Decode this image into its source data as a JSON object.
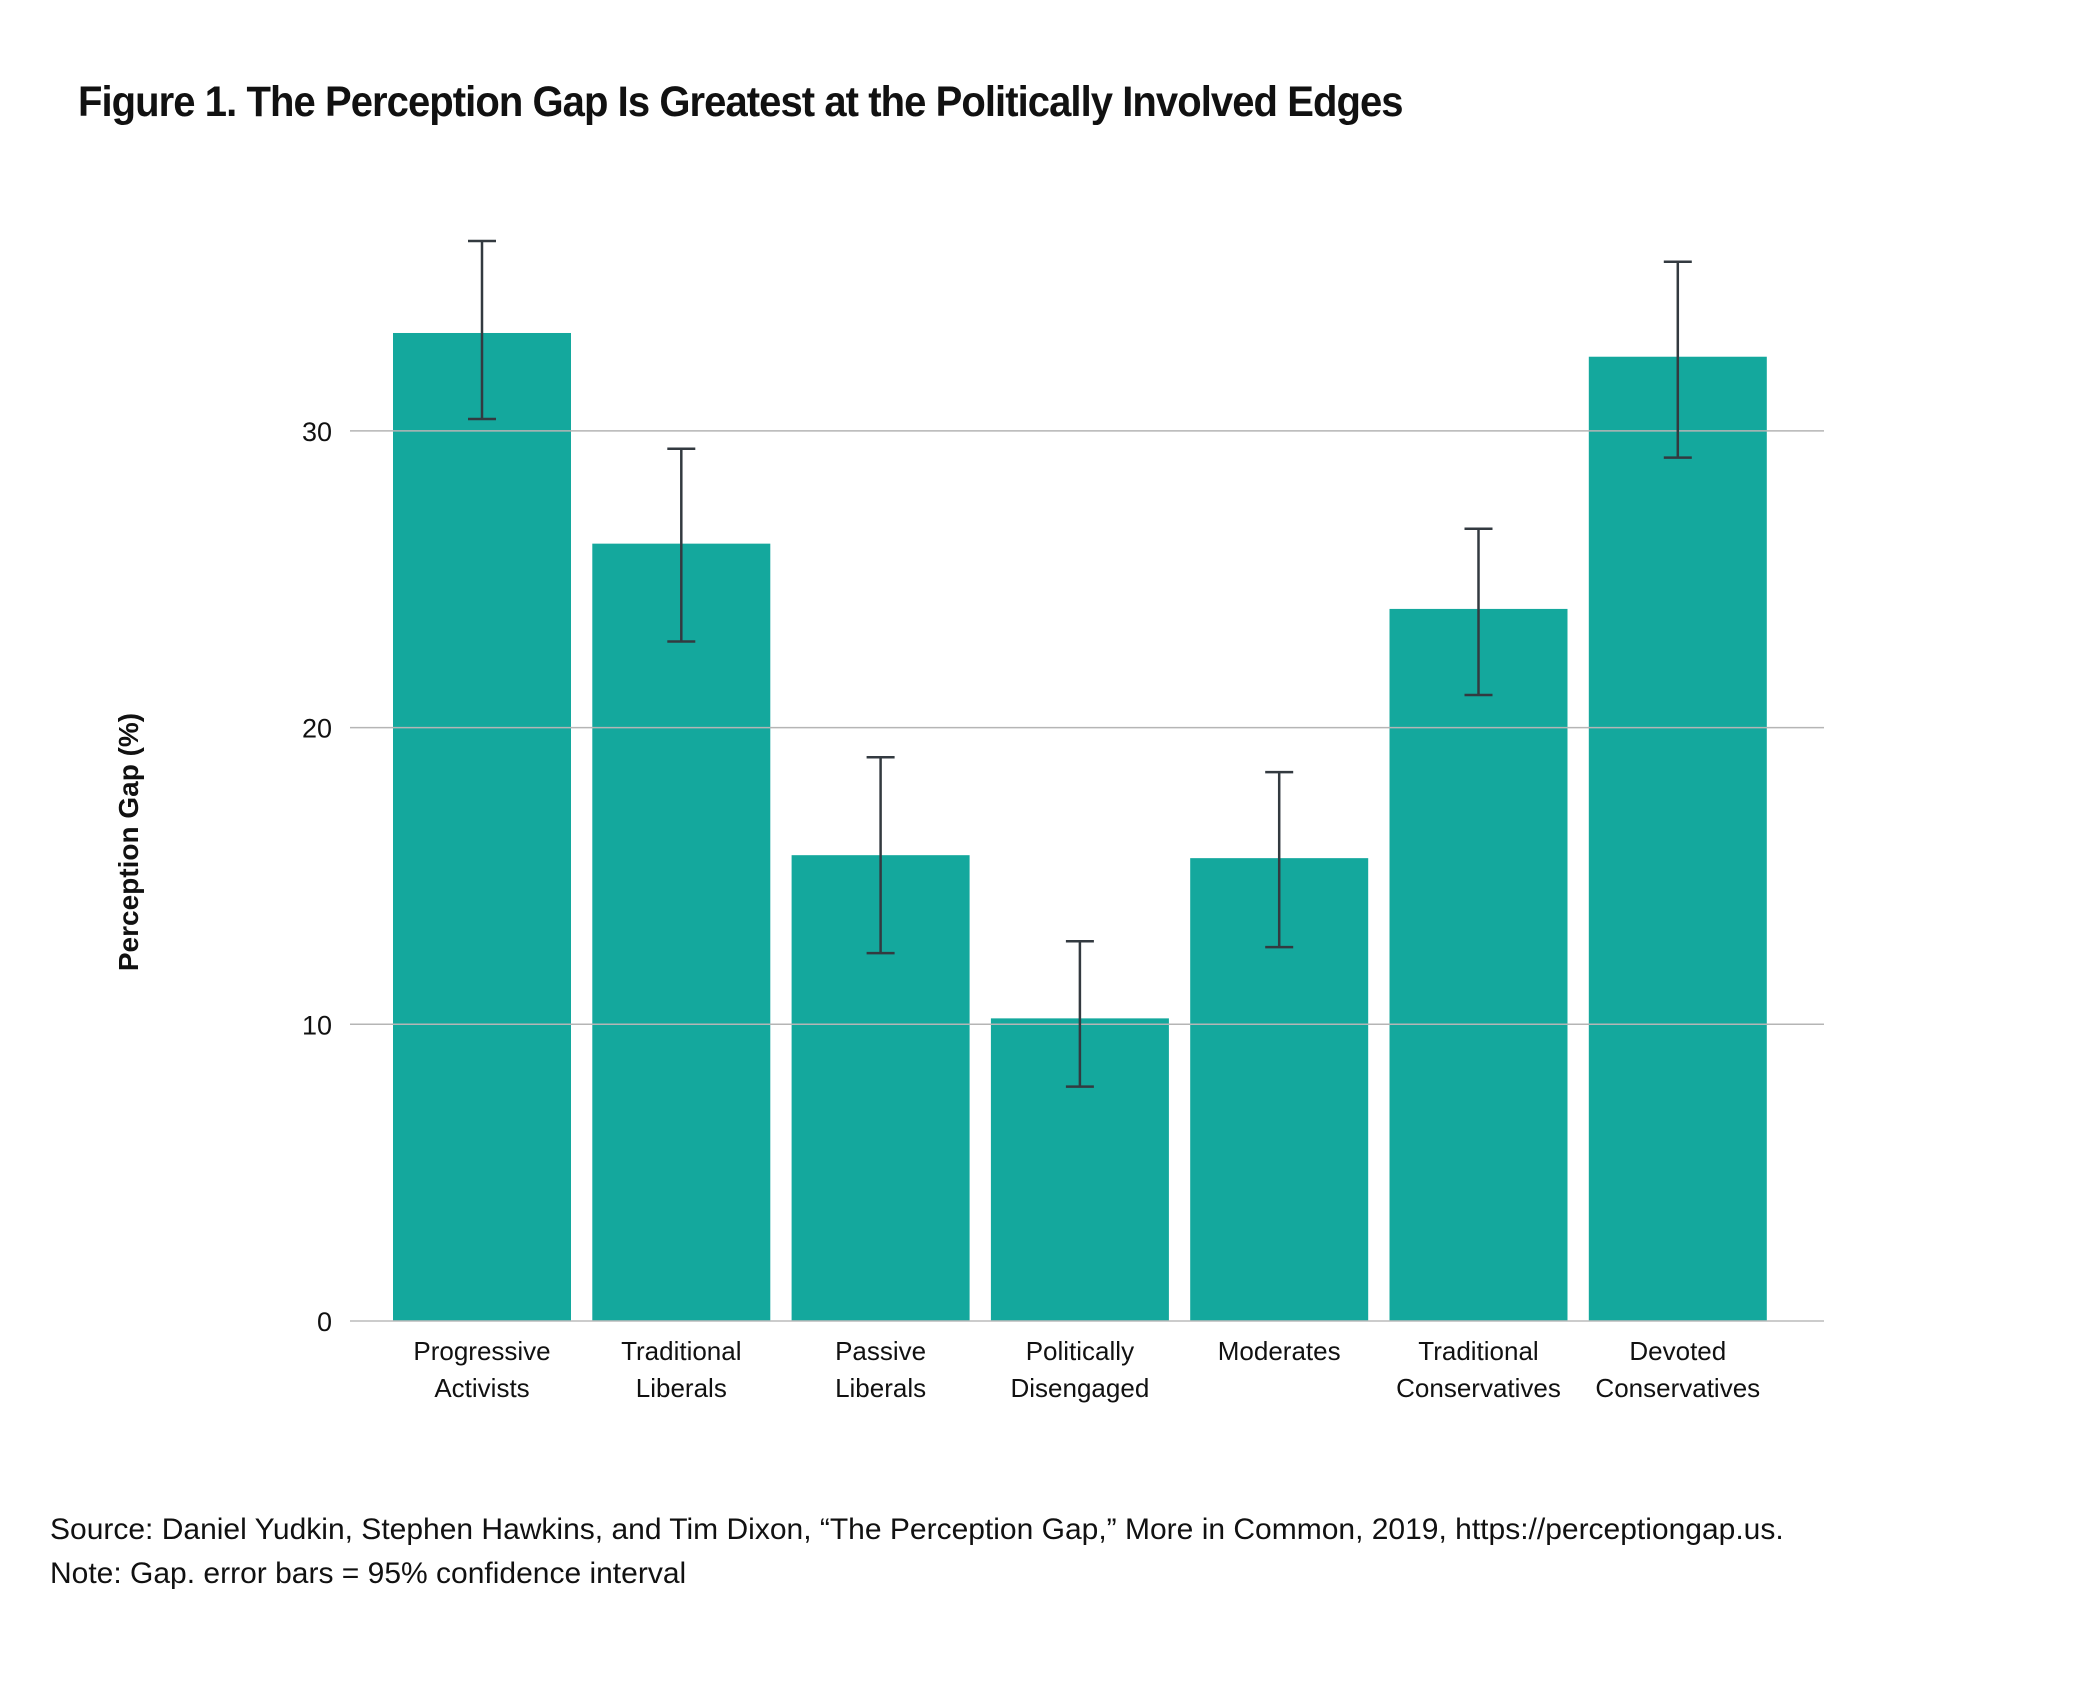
{
  "title": "Figure 1. The Perception Gap Is Greatest at the Politically Involved Edges",
  "chart_data": {
    "type": "bar",
    "title": "Figure 1. The Perception Gap Is Greatest at the Politically Involved Edges",
    "xlabel": "",
    "ylabel": "Perception Gap (%)",
    "ylim": [
      0,
      37
    ],
    "yticks": [
      0,
      10,
      20,
      30
    ],
    "grid": true,
    "bar_color": "#14A89D",
    "error_color": "#333A40",
    "categories": [
      [
        "Progressive",
        "Activists"
      ],
      [
        "Traditional",
        "Liberals"
      ],
      [
        "Passive",
        "Liberals"
      ],
      [
        "Politically",
        "Disengaged"
      ],
      [
        "Moderates"
      ],
      [
        "Traditional",
        "Conservatives"
      ],
      [
        "Devoted",
        "Conservatives"
      ]
    ],
    "values": [
      33.3,
      26.2,
      15.7,
      10.2,
      15.6,
      24.0,
      32.5
    ],
    "error_low": [
      30.4,
      22.9,
      12.4,
      7.9,
      12.6,
      21.1,
      29.1
    ],
    "error_high": [
      36.4,
      29.4,
      19.0,
      12.8,
      18.5,
      26.7,
      35.7
    ]
  },
  "footer": {
    "source": "Source: Daniel Yudkin, Stephen Hawkins, and Tim Dixon, “The Perception Gap,” More in Common, 2019, https://perceptiongap.us.",
    "note": "Note: Gap. error bars = 95% confidence interval"
  }
}
